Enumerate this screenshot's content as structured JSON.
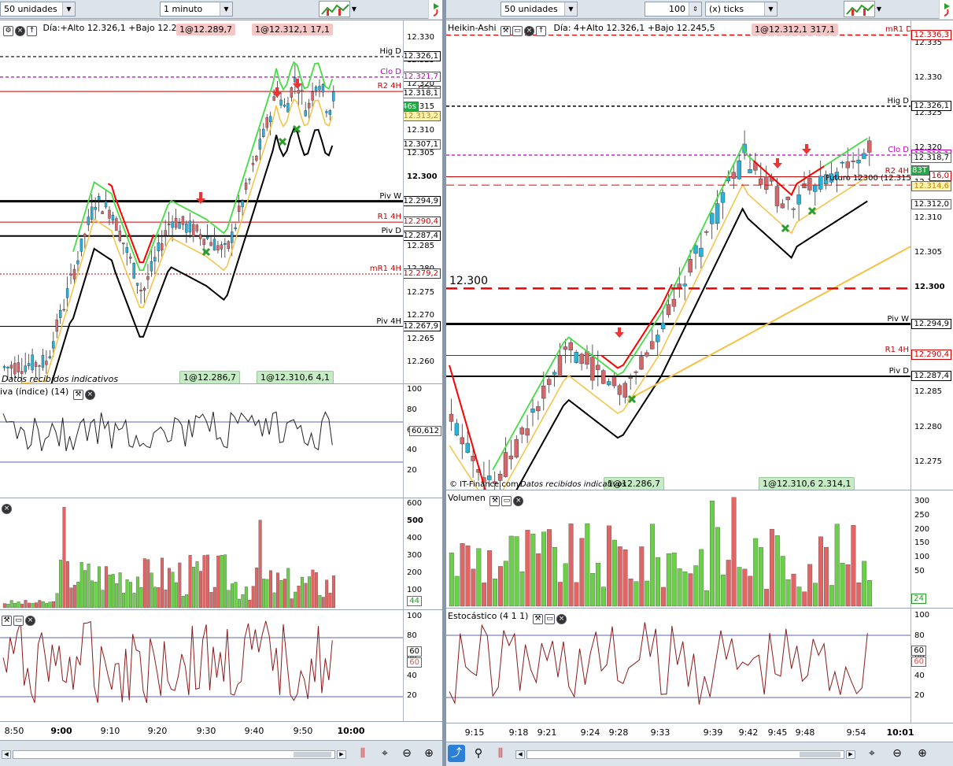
{
  "left": {
    "toolbar": {
      "units_combo": "50 unidades",
      "interval_combo": "1 minuto"
    },
    "info": {
      "day_stats": "Día:+Alto 12.326,1 +Bajo 12.245,5",
      "tag_top_red": "1@12.289,7",
      "tag_top_red2": "1@12.312,1  17,1",
      "tag_bottom_green1": "1@12.286,7",
      "tag_bottom_green2": "1@12.310,6  4,1",
      "status": "Datos recibidos indicativos"
    },
    "price_axis": [
      "12.330",
      "12.325",
      "12.320",
      "12.315",
      "12.310",
      "12.305",
      "12.300",
      "12.295",
      "12.290",
      "12.285",
      "12.280",
      "12.275",
      "12.270",
      "12.265",
      "12.260"
    ],
    "levels": [
      {
        "label": "Hig D",
        "value": "12.326,1",
        "color": "#000000"
      },
      {
        "label": "Clo D",
        "value": "12.321,7",
        "color": "#c000c0"
      },
      {
        "label": "R2 4H",
        "value": "16,0",
        "color": "#cc0000"
      },
      {
        "label": "Piv W",
        "value": "12.294,9",
        "color": "#000000"
      },
      {
        "label": "R1 4H",
        "value": "12.290,4",
        "color": "#cc0000"
      },
      {
        "label": "Piv D",
        "value": "12.287,4",
        "color": "#000000"
      },
      {
        "label": "mR1 4H",
        "value": "12.279,2",
        "color": "#cc0000"
      },
      {
        "label": "Piv 4H",
        "value": "12.267,9",
        "color": "#000000"
      }
    ],
    "price_tags": {
      "last": "12.318,1",
      "timer": "46s",
      "yellow": "12.313,2",
      "ma": "12.307,1"
    },
    "rsi": {
      "title": "iva (índice) (14)",
      "axis": [
        "100",
        "80",
        "60",
        "40",
        "20"
      ],
      "value": "60,612"
    },
    "volume": {
      "axis": [
        "600",
        "500",
        "400",
        "300",
        "200",
        "100"
      ],
      "value": "44"
    },
    "stoch": {
      "axis": [
        "100",
        "80",
        "60",
        "40",
        "20"
      ],
      "value1": "60",
      "value2": "60"
    },
    "time_axis": [
      "8:50",
      "9:00",
      "9:10",
      "9:20",
      "9:30",
      "9:40",
      "9:50",
      "10:00"
    ]
  },
  "right": {
    "toolbar": {
      "units_combo": "50 unidades",
      "ticks_value": "100",
      "ticks_combo": "(x) ticks"
    },
    "info": {
      "title": "Heikin-Ashi",
      "day_stats": "Día: 4+Alto 12.326,1 +Bajo 12.245,5",
      "tag_top_red": "1@12.312,1  317,1",
      "mr1_label": "mR1 D",
      "mr1_value": "12.336,3",
      "future_label": "Futuro 12300 (12.315)",
      "tag_bottom_green1": "1@12.286,7",
      "tag_bottom_green2": "1@12.310,6  2.314,1",
      "copyright": "© IT-Finance.com",
      "status": "Datos recibidos indicativos",
      "line_label": "12.300"
    },
    "price_axis": [
      "12.335",
      "12.330",
      "12.325",
      "12.320",
      "12.315",
      "12.310",
      "12.305",
      "12.300",
      "12.295",
      "12.290",
      "12.285",
      "12.280",
      "12.275"
    ],
    "levels": [
      {
        "label": "Hig D",
        "value": "12.326,1",
        "color": "#000000"
      },
      {
        "label": "Clo D",
        "value": "12.319,1",
        "color": "#c000c0"
      },
      {
        "label": "R2 4H",
        "value": "16,0",
        "color": "#cc0000"
      },
      {
        "label": "Piv W",
        "value": "12.294,9",
        "color": "#000000"
      },
      {
        "label": "R1 4H",
        "value": "12.290,4",
        "color": "#cc0000"
      },
      {
        "label": "Piv D",
        "value": "12.287,4",
        "color": "#000000"
      }
    ],
    "price_tags": {
      "last": "12.318,7",
      "timer": "83T",
      "yellow": "12.314,6",
      "ma": "12.312,0"
    },
    "volume": {
      "title": "Volumen",
      "axis": [
        "300",
        "250",
        "200",
        "150",
        "100",
        "50"
      ],
      "value": "24"
    },
    "stoch": {
      "title": "Estocástico (4 1 1)",
      "axis": [
        "100",
        "80",
        "60",
        "40",
        "20"
      ],
      "value1": "60",
      "value2": "60"
    },
    "time_axis": [
      "9:15",
      "9:18",
      "9:21",
      "9:24",
      "9:28",
      "9:33",
      "9:39",
      "9:42",
      "9:45",
      "9:48",
      "9:54",
      "10:01"
    ]
  },
  "icons": {
    "close": "close-icon",
    "settings": "wrench-icon",
    "up": "up-arrow-icon",
    "down": "down-arrow-icon"
  },
  "colors": {
    "bull": "#6ccf4a",
    "bear": "#e06666",
    "ha_bull": "#2bb2d6",
    "ha_bear": "#d76767",
    "pivot": "#000000",
    "resist": "#cc0000",
    "close_d": "#c000c0",
    "ma_fast": "#ff0000",
    "ma_green": "#44dd44",
    "ma_yellow": "#f5c242",
    "ma_black": "#000000"
  }
}
